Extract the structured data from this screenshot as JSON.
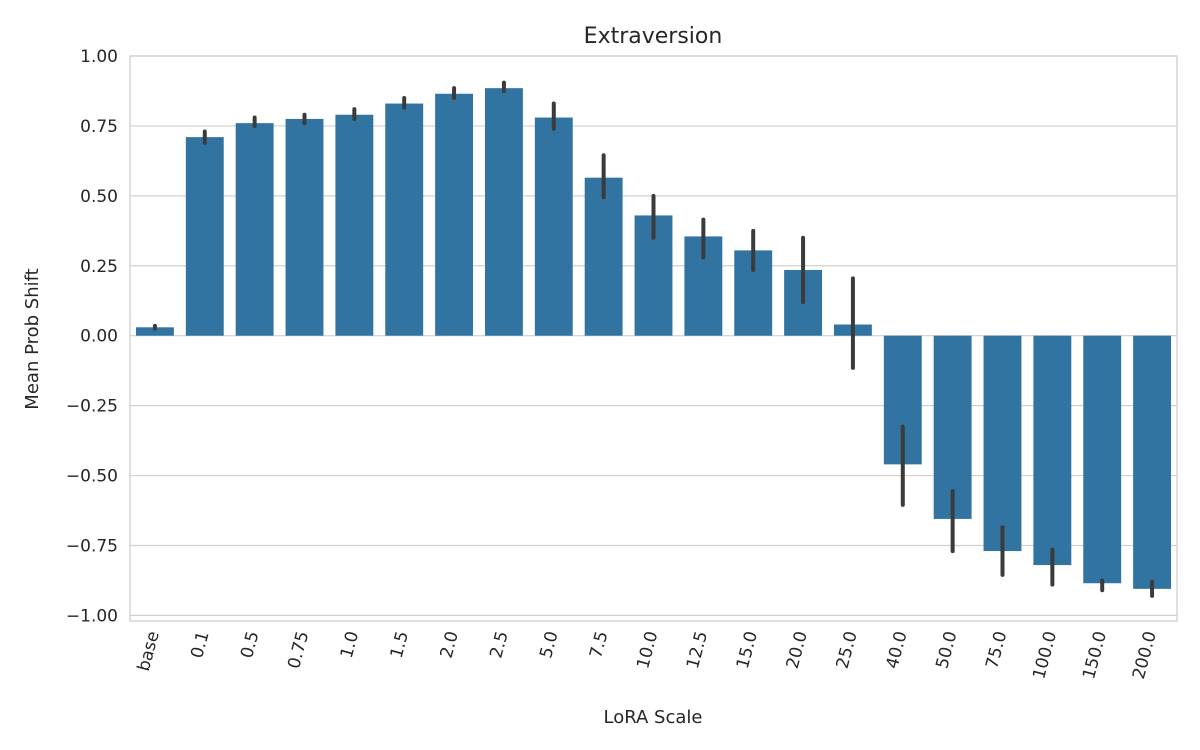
{
  "chart_data": {
    "type": "bar",
    "title": "Extraversion",
    "xlabel": "LoRA Scale",
    "ylabel": "Mean Prob Shift",
    "categories": [
      "base",
      "0.1",
      "0.5",
      "0.75",
      "1.0",
      "1.5",
      "2.0",
      "2.5",
      "5.0",
      "7.5",
      "10.0",
      "12.5",
      "15.0",
      "20.0",
      "25.0",
      "40.0",
      "50.0",
      "75.0",
      "100.0",
      "150.0",
      "200.0"
    ],
    "values": [
      0.03,
      0.71,
      0.76,
      0.775,
      0.79,
      0.83,
      0.865,
      0.885,
      0.78,
      0.565,
      0.43,
      0.355,
      0.305,
      0.235,
      0.04,
      -0.46,
      -0.655,
      -0.77,
      -0.82,
      -0.885,
      -0.905
    ],
    "error_low": [
      0.025,
      0.69,
      0.75,
      0.76,
      0.775,
      0.815,
      0.85,
      0.875,
      0.74,
      0.495,
      0.35,
      0.28,
      0.235,
      0.12,
      -0.115,
      -0.605,
      -0.77,
      -0.855,
      -0.89,
      -0.91,
      -0.93
    ],
    "error_high": [
      0.035,
      0.73,
      0.78,
      0.79,
      0.81,
      0.85,
      0.885,
      0.905,
      0.83,
      0.645,
      0.5,
      0.415,
      0.375,
      0.35,
      0.205,
      -0.325,
      -0.555,
      -0.685,
      -0.765,
      -0.875,
      -0.88
    ],
    "yticks": [
      "1.00",
      "0.75",
      "0.50",
      "0.25",
      "0.00",
      "−0.25",
      "−0.50",
      "−0.75",
      "−1.00"
    ],
    "ytick_values": [
      1.0,
      0.75,
      0.5,
      0.25,
      0.0,
      -0.25,
      -0.5,
      -0.75,
      -1.0
    ],
    "ylim": [
      -1.02,
      1.0
    ],
    "grid": true,
    "colors": {
      "bar": "#3274a1",
      "errorbar": "#3b3b3b",
      "grid": "#d0d0d0",
      "spine": "#cccccc",
      "text": "#262626"
    }
  }
}
